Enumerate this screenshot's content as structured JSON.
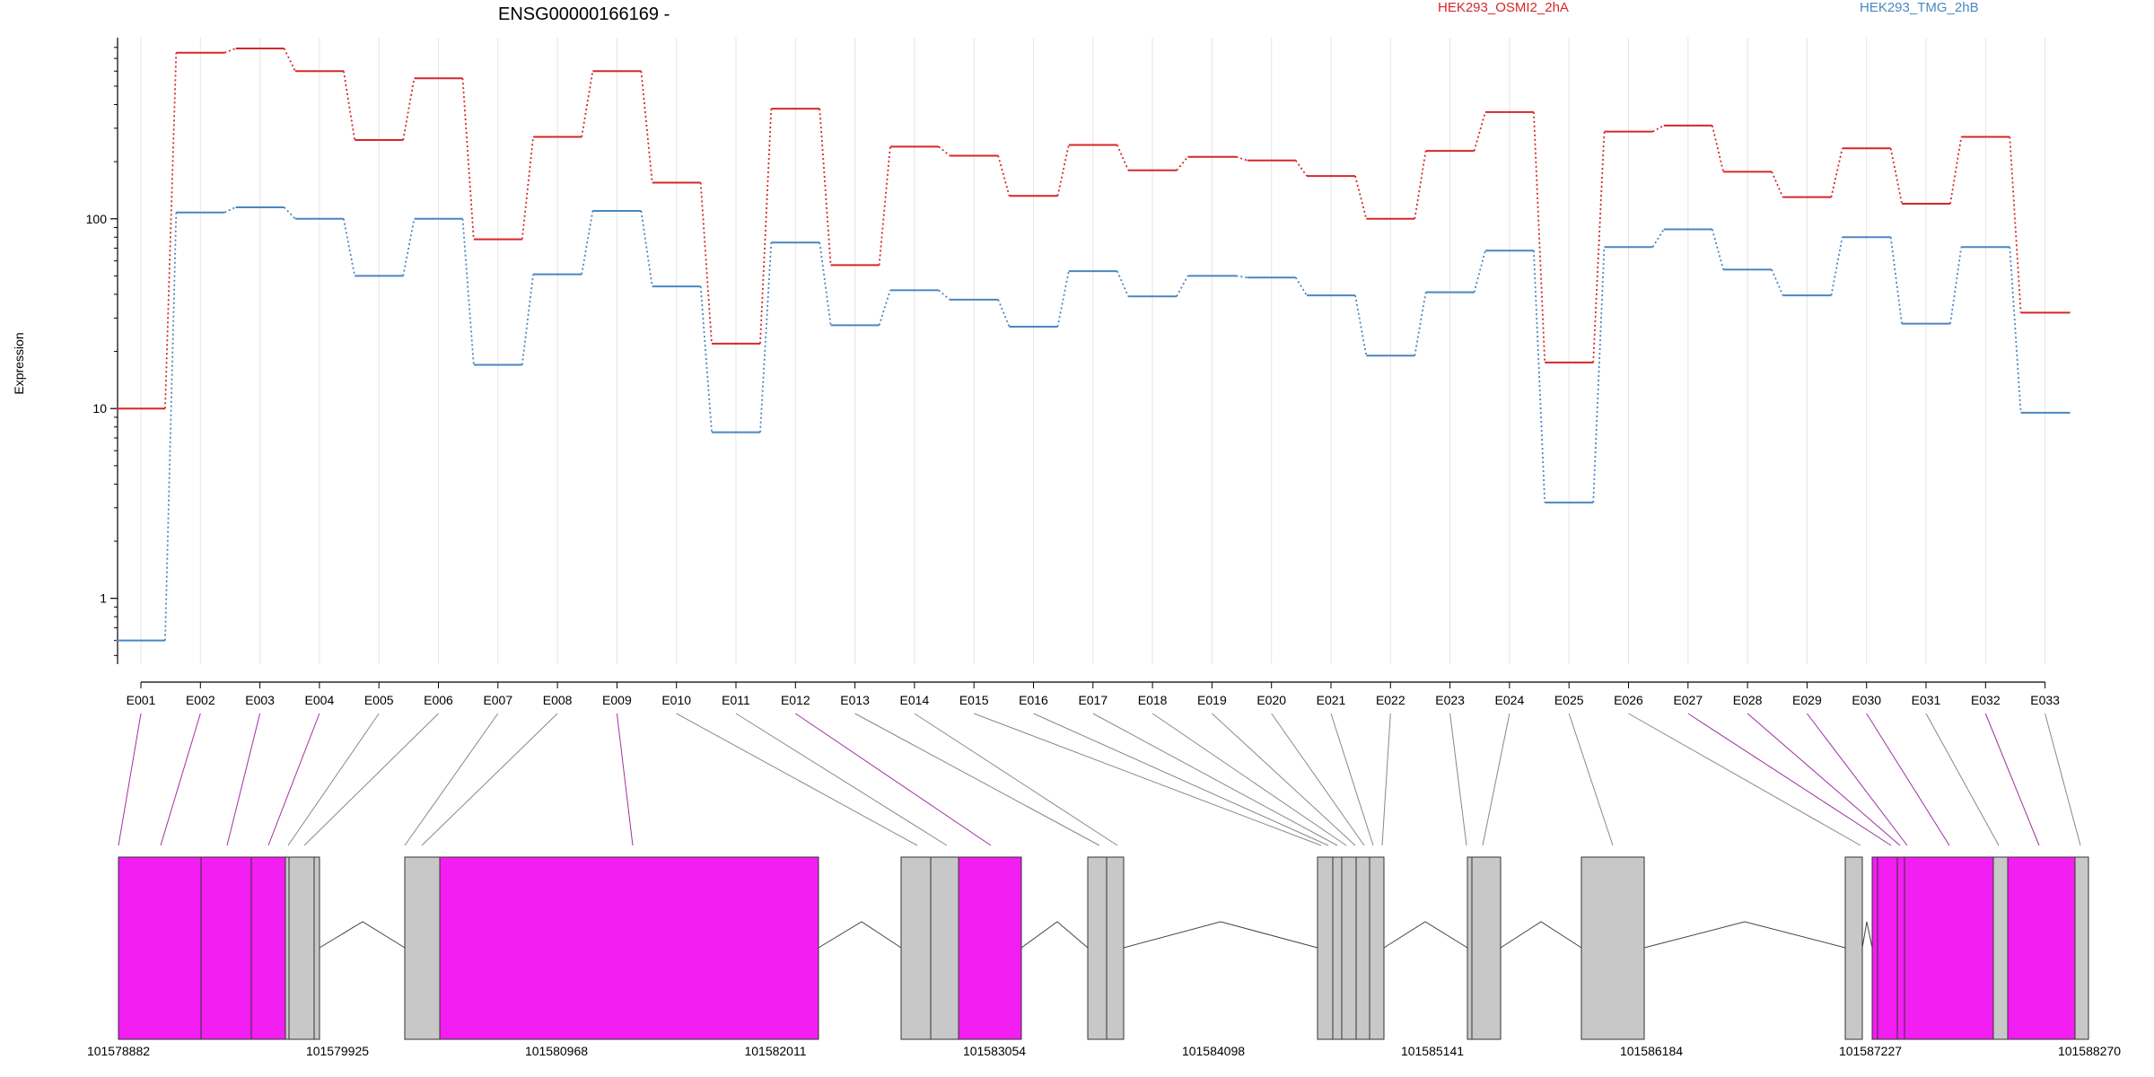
{
  "chart_data": {
    "type": "line",
    "title": "ENSG00000166169 -",
    "ylabel": "Expression",
    "y_scale": "log",
    "ylim": [
      0.45,
      900
    ],
    "y_ticks": [
      1,
      10,
      100
    ],
    "y_tick_labels": [
      "1",
      "10",
      "100"
    ],
    "legend_position": "top-right",
    "categories": [
      "E001",
      "E002",
      "E003",
      "E004",
      "E005",
      "E006",
      "E007",
      "E008",
      "E009",
      "E010",
      "E011",
      "E012",
      "E013",
      "E014",
      "E015",
      "E016",
      "E017",
      "E018",
      "E019",
      "E020",
      "E021",
      "E022",
      "E023",
      "E024",
      "E025",
      "E026",
      "E027",
      "E028",
      "E029",
      "E030",
      "E031",
      "E032",
      "E033"
    ],
    "series": [
      {
        "name": "HEK293_OSMI2_2hA",
        "color": "#d62728",
        "values": [
          10,
          750,
          790,
          600,
          260,
          550,
          78,
          270,
          600,
          155,
          22,
          380,
          57,
          240,
          215,
          132,
          245,
          180,
          212,
          203,
          168,
          100,
          228,
          365,
          17.5,
          288,
          310,
          177,
          130,
          235,
          120,
          270,
          32
        ]
      },
      {
        "name": "HEK293_TMG_2hB",
        "color": "#4a86c2",
        "values": [
          0.6,
          108,
          115,
          100,
          50,
          100,
          17,
          51,
          110,
          44,
          7.5,
          75,
          27.5,
          42,
          37.5,
          27,
          53,
          39,
          50,
          49,
          39.5,
          19,
          41,
          68,
          3.2,
          71,
          88,
          54,
          39.5,
          80,
          28,
          71,
          9.5
        ]
      }
    ],
    "gene_model": {
      "coord_labels": [
        "101578882",
        "101579925",
        "101580968",
        "101582011",
        "101583054",
        "101584098",
        "101585141",
        "101586184",
        "101587227",
        "101588270"
      ],
      "highlight_color": "#f21ef2",
      "exon_color": "#c8c8c8"
    }
  }
}
